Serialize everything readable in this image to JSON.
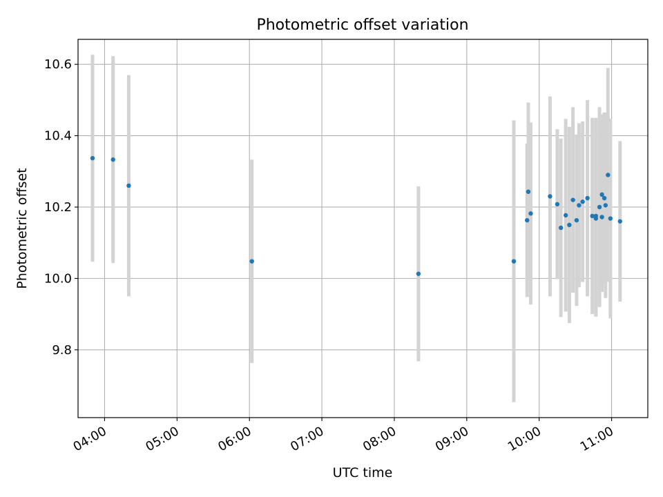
{
  "chart_data": {
    "type": "scatter",
    "title": "Photometric offset variation",
    "xlabel": "UTC time",
    "ylabel": "Photometric offset",
    "x_tick_labels": [
      "04:00",
      "05:00",
      "06:00",
      "07:00",
      "08:00",
      "09:00",
      "10:00",
      "11:00"
    ],
    "y_tick_labels": [
      "9.8",
      "10.0",
      "10.2",
      "10.4",
      "10.6"
    ],
    "xlim": [
      "03:38",
      "11:30"
    ],
    "ylim": [
      9.61,
      10.67
    ],
    "grid": true,
    "colors": {
      "marker": "#1f77b4",
      "errorbar": "#d3d3d3",
      "grid": "#b0b0b0"
    },
    "series": [
      {
        "x": [
          "03:50",
          "04:07",
          "04:20",
          "06:02",
          "08:20",
          "09:39",
          "09:50",
          "09:51",
          "09:53",
          "10:09",
          "10:15",
          "10:18",
          "10:22",
          "10:25",
          "10:28",
          "10:31",
          "10:33",
          "10:36",
          "10:40",
          "10:44",
          "10:47",
          "10:47",
          "10:50",
          "10:52",
          "10:52",
          "10:54",
          "10:55",
          "10:57",
          "10:59",
          "11:07"
        ],
        "y": [
          10.337,
          10.333,
          10.26,
          10.048,
          10.013,
          10.048,
          10.163,
          10.243,
          10.182,
          10.23,
          10.208,
          10.142,
          10.177,
          10.15,
          10.22,
          10.163,
          10.205,
          10.215,
          10.225,
          10.175,
          10.175,
          10.168,
          10.2,
          10.172,
          10.235,
          10.225,
          10.205,
          10.29,
          10.168,
          10.16
        ],
        "err": [
          0.29,
          0.29,
          0.31,
          0.285,
          0.245,
          0.395,
          0.215,
          0.25,
          0.255,
          0.28,
          0.21,
          0.25,
          0.27,
          0.275,
          0.26,
          0.24,
          0.23,
          0.225,
          0.275,
          0.275,
          0.275,
          0.275,
          0.28,
          0.21,
          0.225,
          0.24,
          0.26,
          0.3,
          0.28,
          0.225
        ]
      }
    ]
  }
}
